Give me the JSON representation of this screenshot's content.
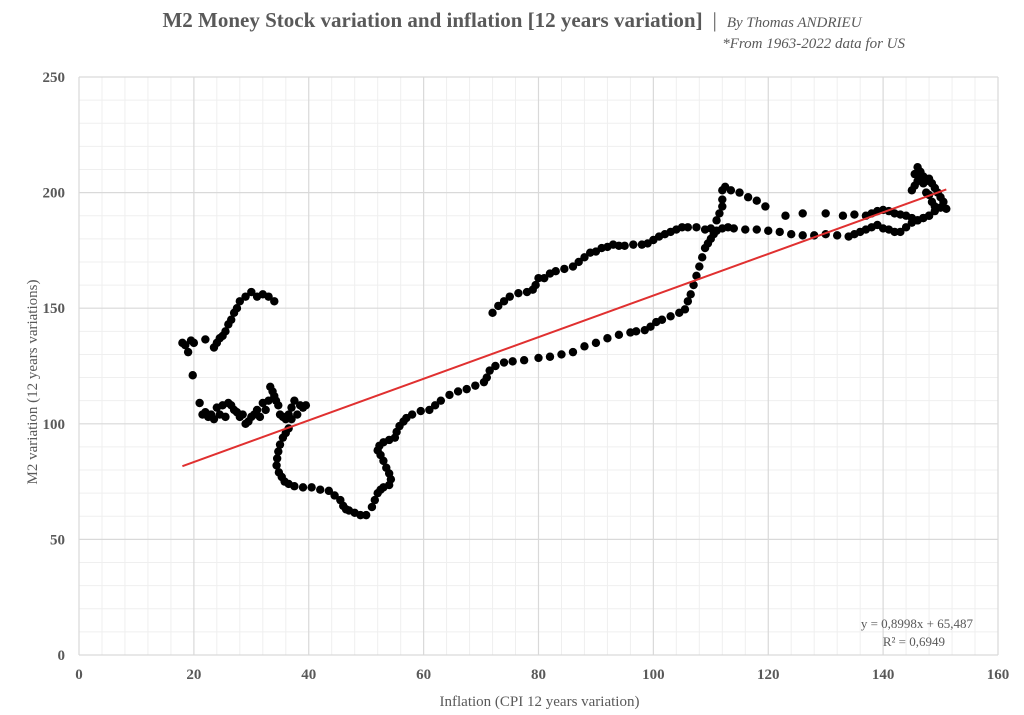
{
  "chart_data": {
    "type": "scatter",
    "title": "M2 Money Stock variation and inflation [12 years variation]",
    "title_separator": "|",
    "author": "By Thomas ANDRIEU",
    "subtitle": "*From 1963-2022 data for US",
    "xlabel": "Inflation (CPI 12 years variation)",
    "ylabel": "M2 variation (12 years variations)",
    "xlim": [
      0,
      160
    ],
    "ylim": [
      0,
      250
    ],
    "xticks": [
      0,
      20,
      40,
      60,
      80,
      100,
      120,
      140,
      160
    ],
    "yticks": [
      0,
      50,
      100,
      150,
      200,
      250
    ],
    "grid": true,
    "minor_grid": true,
    "legend": "none",
    "colors": {
      "points": "#000000",
      "trendline": "#e03030",
      "grid_major": "#d9d9d9",
      "grid_minor": "#efefef",
      "text": "#595959"
    },
    "series": [
      {
        "points": [
          [
            34,
            153
          ],
          [
            33,
            155
          ],
          [
            32,
            156
          ],
          [
            31,
            155
          ],
          [
            30,
            157
          ],
          [
            29,
            155
          ],
          [
            28,
            153
          ],
          [
            27.5,
            150
          ],
          [
            27,
            148
          ],
          [
            26.5,
            145
          ],
          [
            26,
            143
          ],
          [
            25.5,
            140
          ],
          [
            25,
            138
          ],
          [
            24.5,
            137
          ],
          [
            24,
            135
          ],
          [
            23.5,
            133
          ],
          [
            22,
            136.5
          ],
          [
            18,
            135
          ],
          [
            18.5,
            134
          ],
          [
            19,
            131
          ],
          [
            19.5,
            136
          ],
          [
            20,
            135
          ],
          [
            19.8,
            121
          ],
          [
            21,
            109
          ],
          [
            21.5,
            104
          ],
          [
            22,
            105
          ],
          [
            22.5,
            103
          ],
          [
            23,
            104
          ],
          [
            23.5,
            102
          ],
          [
            24,
            107
          ],
          [
            24.5,
            104
          ],
          [
            25,
            108
          ],
          [
            25.5,
            103
          ],
          [
            26,
            109
          ],
          [
            26.5,
            108
          ],
          [
            27,
            106
          ],
          [
            27.5,
            105
          ],
          [
            28,
            103
          ],
          [
            28.5,
            104
          ],
          [
            29,
            100
          ],
          [
            29.5,
            101
          ],
          [
            30,
            103
          ],
          [
            30.5,
            104
          ],
          [
            31,
            106
          ],
          [
            31.5,
            103
          ],
          [
            32,
            109
          ],
          [
            32.5,
            106
          ],
          [
            33,
            110
          ],
          [
            33.3,
            116
          ],
          [
            33.7,
            114
          ],
          [
            34,
            112
          ],
          [
            34.3,
            110
          ],
          [
            34.7,
            108
          ],
          [
            35,
            104
          ],
          [
            35.5,
            103
          ],
          [
            36,
            102
          ],
          [
            36.5,
            104
          ],
          [
            37,
            107
          ],
          [
            37.5,
            110
          ],
          [
            38,
            104
          ],
          [
            38.5,
            108
          ],
          [
            39,
            107
          ],
          [
            39.5,
            108
          ],
          [
            37,
            102
          ],
          [
            36.5,
            98
          ],
          [
            36,
            96
          ],
          [
            35.5,
            94
          ],
          [
            35,
            91
          ],
          [
            34.7,
            88
          ],
          [
            34.5,
            85
          ],
          [
            34.4,
            82
          ],
          [
            34.8,
            79
          ],
          [
            35.3,
            77
          ],
          [
            35.8,
            75
          ],
          [
            36.5,
            74
          ],
          [
            37.5,
            73
          ],
          [
            39,
            72.5
          ],
          [
            40.5,
            72.5
          ],
          [
            42,
            71.5
          ],
          [
            43.5,
            71
          ],
          [
            44.5,
            69
          ],
          [
            45.5,
            67
          ],
          [
            46,
            64.5
          ],
          [
            46.5,
            63
          ],
          [
            47,
            62.5
          ],
          [
            48,
            61.5
          ],
          [
            49,
            60.5
          ],
          [
            50,
            60.5
          ],
          [
            51,
            64
          ],
          [
            51.5,
            67
          ],
          [
            52,
            70
          ],
          [
            52.5,
            71.5
          ],
          [
            53,
            72.5
          ],
          [
            54,
            73.5
          ],
          [
            54.3,
            76
          ],
          [
            54,
            78.5
          ],
          [
            53.5,
            81
          ],
          [
            53,
            84
          ],
          [
            52.5,
            86.5
          ],
          [
            52,
            88.5
          ],
          [
            52.3,
            90.5
          ],
          [
            53,
            92
          ],
          [
            54,
            93
          ],
          [
            55,
            94
          ],
          [
            55.3,
            96.5
          ],
          [
            55.8,
            99
          ],
          [
            56.5,
            101
          ],
          [
            57,
            102.5
          ],
          [
            58,
            104
          ],
          [
            59.5,
            105.5
          ],
          [
            61,
            106
          ],
          [
            62,
            108
          ],
          [
            63,
            110
          ],
          [
            64.5,
            112.5
          ],
          [
            66,
            114
          ],
          [
            67.5,
            115
          ],
          [
            69,
            116.5
          ],
          [
            70.5,
            118
          ],
          [
            71,
            120
          ],
          [
            71.5,
            123
          ],
          [
            72.5,
            125
          ],
          [
            74,
            126.5
          ],
          [
            75.5,
            127
          ],
          [
            77.5,
            127.5
          ],
          [
            80,
            128.5
          ],
          [
            82,
            129
          ],
          [
            84,
            130
          ],
          [
            86,
            131
          ],
          [
            88,
            133.5
          ],
          [
            90,
            135
          ],
          [
            92,
            137
          ],
          [
            94,
            138.5
          ],
          [
            96,
            139.5
          ],
          [
            97,
            140
          ],
          [
            98.5,
            140.5
          ],
          [
            99.5,
            142
          ],
          [
            100.5,
            144
          ],
          [
            101.5,
            145
          ],
          [
            103,
            146.5
          ],
          [
            104.5,
            148
          ],
          [
            105.5,
            149.5
          ],
          [
            106,
            153
          ],
          [
            106.5,
            156
          ],
          [
            107,
            160
          ],
          [
            107.5,
            164
          ],
          [
            108,
            168
          ],
          [
            108.5,
            172
          ],
          [
            109,
            176
          ],
          [
            109.5,
            178
          ],
          [
            110,
            180
          ],
          [
            110.5,
            182
          ],
          [
            111,
            183.5
          ],
          [
            112,
            184.5
          ],
          [
            113,
            185
          ],
          [
            114,
            184.5
          ],
          [
            116,
            184
          ],
          [
            118,
            184
          ],
          [
            120,
            183.5
          ],
          [
            122,
            183
          ],
          [
            124,
            182
          ],
          [
            126,
            181.5
          ],
          [
            128,
            181.5
          ],
          [
            130,
            182
          ],
          [
            132,
            181.5
          ],
          [
            134,
            181
          ],
          [
            135,
            182
          ],
          [
            136,
            183
          ],
          [
            137,
            184
          ],
          [
            138,
            185
          ],
          [
            139,
            186
          ],
          [
            140,
            184.5
          ],
          [
            141,
            184
          ],
          [
            142,
            183
          ],
          [
            143,
            183
          ],
          [
            144,
            185
          ],
          [
            145,
            187
          ],
          [
            146,
            188
          ],
          [
            147,
            189
          ],
          [
            148,
            190
          ],
          [
            149,
            192
          ],
          [
            150,
            193.5
          ],
          [
            151,
            193
          ],
          [
            150.5,
            196
          ],
          [
            150,
            198
          ],
          [
            149.5,
            200
          ],
          [
            149,
            202
          ],
          [
            148.5,
            204
          ],
          [
            148,
            206
          ],
          [
            147.5,
            205
          ],
          [
            147,
            207
          ],
          [
            146.5,
            206
          ],
          [
            146,
            205
          ],
          [
            145.5,
            203
          ],
          [
            145,
            201
          ],
          [
            145.5,
            208
          ],
          [
            146,
            211
          ],
          [
            146.5,
            209
          ],
          [
            147,
            204
          ],
          [
            147.5,
            200
          ],
          [
            148,
            199
          ],
          [
            148.5,
            196
          ],
          [
            149,
            194
          ],
          [
            148,
            190
          ],
          [
            147,
            189
          ],
          [
            146,
            188
          ],
          [
            145,
            189
          ],
          [
            144,
            190
          ],
          [
            143,
            190.5
          ],
          [
            142,
            191
          ],
          [
            141,
            192
          ],
          [
            140,
            192.5
          ],
          [
            139,
            192
          ],
          [
            138,
            191
          ],
          [
            137,
            190
          ],
          [
            135,
            190.5
          ],
          [
            133,
            190
          ],
          [
            130,
            191
          ],
          [
            126,
            191
          ],
          [
            123,
            190
          ],
          [
            119.5,
            194
          ],
          [
            118,
            196.5
          ],
          [
            116.5,
            198
          ],
          [
            115,
            200
          ],
          [
            113.5,
            201
          ],
          [
            112.5,
            202.5
          ],
          [
            112,
            201
          ],
          [
            112,
            197
          ],
          [
            112,
            194
          ],
          [
            111.5,
            191
          ],
          [
            111,
            188
          ],
          [
            110,
            184.5
          ],
          [
            109,
            184
          ],
          [
            107.5,
            185
          ],
          [
            106,
            185
          ],
          [
            105,
            185
          ],
          [
            104,
            184
          ],
          [
            103,
            183
          ],
          [
            102,
            182
          ],
          [
            101,
            181
          ],
          [
            100,
            179.5
          ],
          [
            99,
            178
          ],
          [
            98,
            177.5
          ],
          [
            96.5,
            177.5
          ],
          [
            95,
            177
          ],
          [
            94,
            177
          ],
          [
            93,
            177.5
          ],
          [
            92,
            176.5
          ],
          [
            91,
            176
          ],
          [
            90,
            174.5
          ],
          [
            89,
            174
          ],
          [
            88,
            172
          ],
          [
            87,
            170
          ],
          [
            86,
            168
          ],
          [
            84.5,
            167
          ],
          [
            83,
            166
          ],
          [
            82,
            165
          ],
          [
            81,
            163
          ],
          [
            80,
            163
          ],
          [
            79.5,
            160
          ],
          [
            79,
            158
          ],
          [
            78,
            157
          ],
          [
            76.5,
            156.5
          ],
          [
            75,
            155
          ],
          [
            74,
            153
          ],
          [
            73,
            151
          ],
          [
            72,
            148
          ]
        ]
      }
    ],
    "trendline": {
      "type": "linear",
      "slope": 0.8998,
      "intercept": 65.487,
      "x_range": [
        18,
        151
      ],
      "equation_label": "y = 0,8998x + 65,487",
      "r2_label": "R² = 0,6949"
    }
  }
}
